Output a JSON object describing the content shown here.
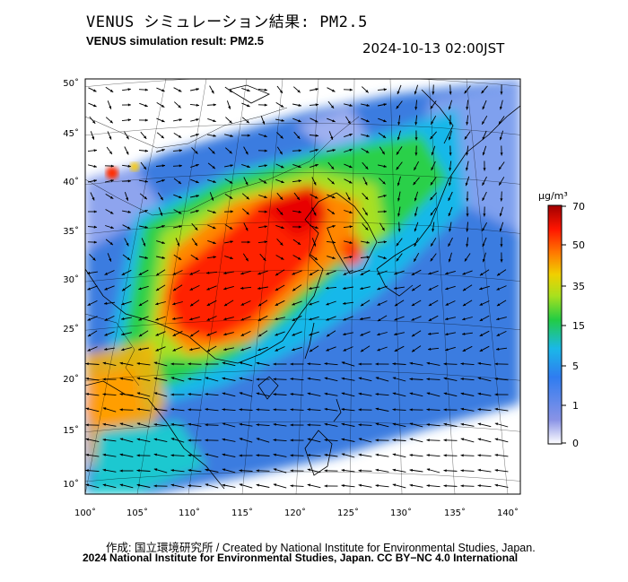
{
  "header": {
    "title_jp": "VENUS シミュレーション結果: PM2.5",
    "title_en": "VENUS simulation result: PM2.5",
    "timestamp": "2024-10-13 02:00JST"
  },
  "map": {
    "lat_labels": [
      "50˚",
      "45˚",
      "40˚",
      "35˚",
      "30˚",
      "25˚",
      "20˚",
      "15˚",
      "10˚"
    ],
    "lon_labels": [
      "100˚",
      "105˚",
      "110˚",
      "115˚",
      "120˚",
      "125˚",
      "130˚",
      "135˚",
      "140˚"
    ],
    "colors": {
      "ocean_low": "#3a7be0",
      "land_low": "#7fa0ee",
      "high": "#ff2a00",
      "mid": "#24c832"
    }
  },
  "colorbar": {
    "unit": "μg/m³",
    "tick_labels": [
      "70",
      "50",
      "35",
      "15",
      "5",
      "1",
      "0"
    ],
    "stops": [
      "#ffffff",
      "#8a93e6",
      "#2f7cf0",
      "#1ab8e8",
      "#22cc44",
      "#a8e01e",
      "#f0d000",
      "#ff7a00",
      "#ff1500",
      "#a10000"
    ]
  },
  "footer": {
    "credit": "作成: 国立環境研究所 / Created by National Institute for Environmental Studies, Japan.",
    "copyright": "2024 National Institute for Environmental Studies, Japan. CC BY−NC 4.0 International"
  }
}
